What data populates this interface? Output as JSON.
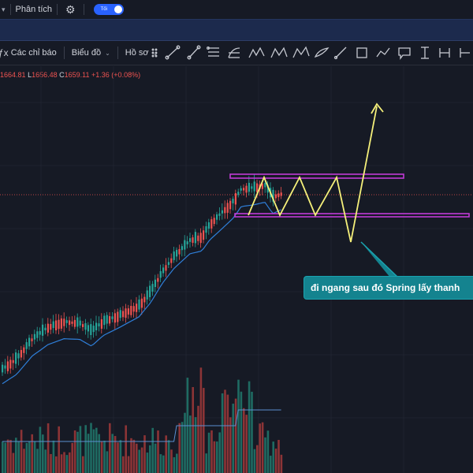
{
  "topbar": {
    "analysis_label": "Phân tích",
    "theme_toggle_label": "Tối"
  },
  "toolbar": {
    "indicators_label": "Các chỉ báo",
    "chart_label": "Biểu đồ",
    "profile_label": "Hồ sơ"
  },
  "ohlc": {
    "h": "1664.81",
    "l": "1656.48",
    "c": "1659.11",
    "change": "+1.36 (+0.08%)"
  },
  "annotation": {
    "text": "đi ngang sau đó Spring lấy thanh"
  },
  "colors": {
    "background": "#161a25",
    "up_candle": "#26a69a",
    "down_candle": "#ef5350",
    "ma_line": "#2f7fd9",
    "drawing_yellow": "#f5f07a",
    "channel_purple": "#c03ad6",
    "annotation_bg": "#14838f"
  },
  "icons": [
    "trend-line-icon",
    "ray-icon",
    "parallel-channel-icon",
    "fib-icon",
    "xabcd-pattern-icon",
    "abcd-pattern-icon",
    "elliott-wave-icon",
    "brush-icon",
    "pen-icon",
    "rectangle-icon",
    "path-icon",
    "callout-icon",
    "price-range-icon",
    "date-range-icon"
  ]
}
